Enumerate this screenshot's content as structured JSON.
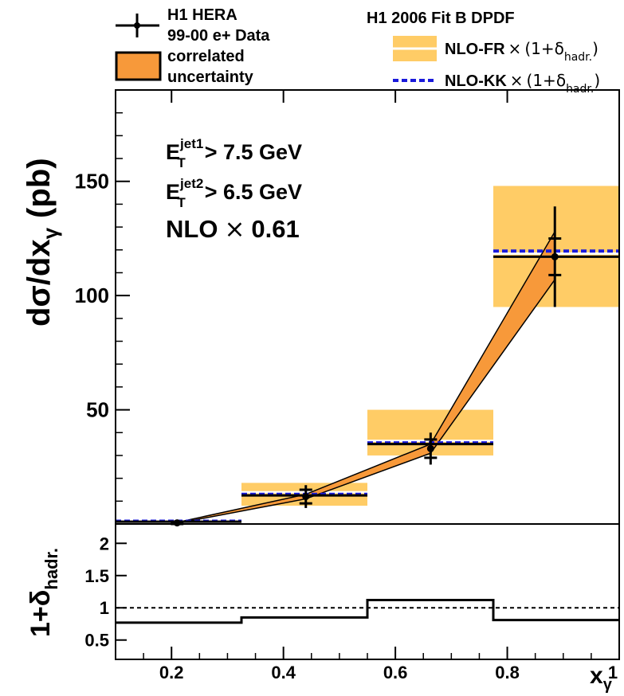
{
  "chart_data": [
    {
      "type": "bar",
      "panel": "main",
      "ylabel": "dσ/dx_γ (pb)",
      "ylabel_main": "dσ/dx",
      "ylabel_sub": "γ",
      "ylabel_unit": "(pb)",
      "xlim": [
        0.1,
        1.0
      ],
      "ylim": [
        0,
        190
      ],
      "yticks": [
        "50",
        "100",
        "150"
      ],
      "bins": [
        [
          0.1,
          0.325
        ],
        [
          0.325,
          0.55
        ],
        [
          0.55,
          0.775
        ],
        [
          0.775,
          1.0
        ]
      ],
      "data": {
        "name": "H1 HERA 99-00 e+ Data",
        "x": [
          0.21,
          0.44,
          0.663,
          0.885
        ],
        "y": [
          0.5,
          12,
          33,
          117
        ],
        "stat_err": [
          0.5,
          3,
          4,
          8
        ],
        "tot_err": [
          0.5,
          5,
          7,
          22
        ]
      },
      "correlated_uncertainty": {
        "name": "correlated uncertainty",
        "x": [
          0.21,
          0.44,
          0.663,
          0.885
        ],
        "low": [
          0.3,
          11,
          31,
          107
        ],
        "high": [
          0.7,
          13,
          35,
          128
        ]
      },
      "nlo_fr": {
        "name": "NLO-FR × (1+δhadr.)",
        "values": [
          1.0,
          12.5,
          35,
          117
        ],
        "band_low": [
          0.5,
          8,
          30,
          95
        ],
        "band_high": [
          1.5,
          18,
          50,
          148
        ]
      },
      "nlo_kk": {
        "name": "NLO-KK × (1+δhadr.)",
        "values": [
          1.2,
          13,
          35.5,
          119.5
        ]
      },
      "colors": {
        "band": "#ffcc66",
        "corr": "#f7993a",
        "kk": "#1a1adb",
        "line": "#000000",
        "centre": "#ffffff"
      }
    },
    {
      "type": "line",
      "panel": "ratio",
      "ylabel_main": "1+δ",
      "ylabel_sub": "hadr.",
      "xlabel_main": "x",
      "xlabel_sub": "γ",
      "xlim": [
        0.1,
        1.0
      ],
      "ylim": [
        0.2,
        2.3
      ],
      "xticks": [
        "0.2",
        "0.4",
        "0.6",
        "0.8",
        "1"
      ],
      "yticks": [
        "0.5",
        "1",
        "1.5",
        "2"
      ],
      "bins": [
        [
          0.1,
          0.325
        ],
        [
          0.325,
          0.55
        ],
        [
          0.55,
          0.775
        ],
        [
          0.775,
          1.0
        ]
      ],
      "values": [
        0.77,
        0.85,
        1.12,
        0.81
      ],
      "reference": 1.0
    }
  ],
  "legend_left": {
    "data_line1": "H1 HERA",
    "data_line2": "99-00 e+ Data",
    "corr_line1": "correlated",
    "corr_line2": "uncertainty"
  },
  "legend_right": {
    "title": "H1 2006 Fit B DPDF",
    "fr_text": "NLO-FR",
    "kk_text": "NLO-KK",
    "factor_times": "×",
    "factor_open": "(1+δ",
    "factor_sub": "hadr.",
    "factor_close": ")"
  },
  "annotations": {
    "et1_E": "E",
    "et1_sup": "jet1",
    "et1_sub": "T",
    "et1_text": "> 7.5 GeV",
    "et2_E": "E",
    "et2_sup": "jet2",
    "et2_sub": "T",
    "et2_text": "> 6.5 GeV",
    "nlo_text": "NLO",
    "nlo_times": "×",
    "nlo_factor": "0.61"
  }
}
